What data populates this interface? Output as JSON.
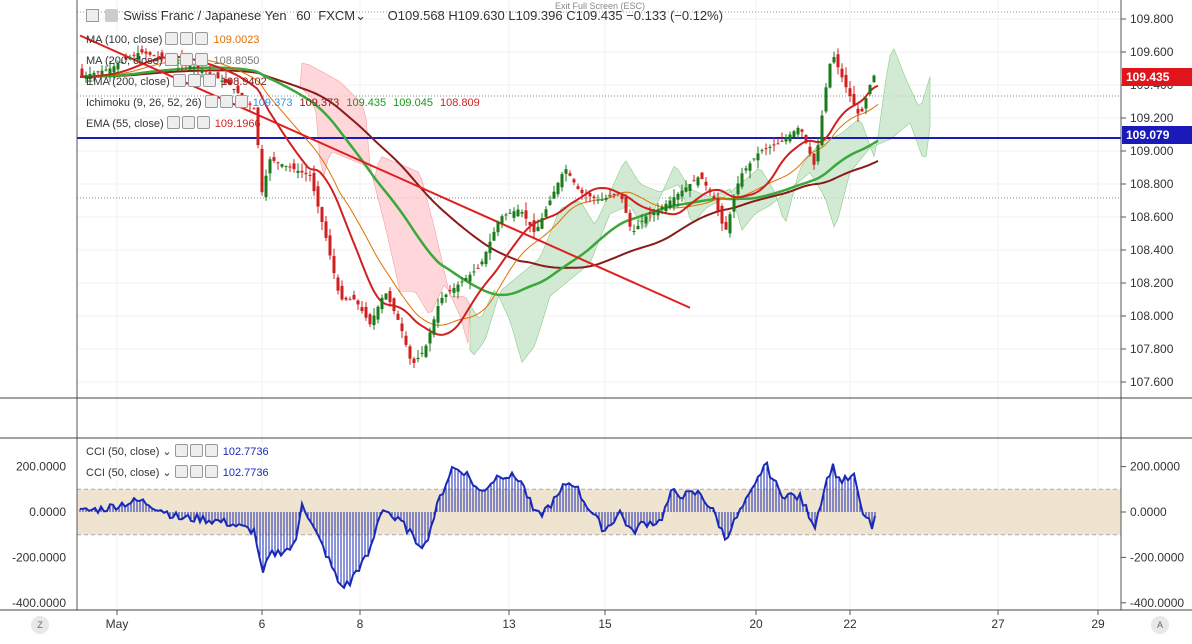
{
  "exit_fullscreen": "Exit Full Screen (ESC)",
  "header": {
    "symbol": "Swiss Franc / Japanese Yen",
    "interval": "60",
    "exchange": "FXCM",
    "ohlc": "O109.568  H109.630  L109.396  C109.435  −0.133 (−0.12%)",
    "caret": "⌄"
  },
  "indicators": [
    {
      "label": "MA (100, close)",
      "value": "109.0023",
      "color": "#e07000"
    },
    {
      "label": "MA (200, close)",
      "value": "108.8050",
      "color": "#777777"
    },
    {
      "label": "EMA (200, close)",
      "value": "108.9402",
      "color": "#8b1a1a"
    },
    {
      "label": "Ichimoku (9, 26, 52, 26)",
      "values": [
        "109.373",
        "109.373",
        "109.435",
        "109.045",
        "108.809"
      ],
      "colors": [
        "#2196f3",
        "#8b1a1a",
        "#1a9a1a",
        "#1a9a1a",
        "#d02020"
      ]
    },
    {
      "label": "EMA (55, close)",
      "value": "109.1966",
      "color": "#d02020"
    }
  ],
  "price_axis": {
    "ticks": [
      "109.800",
      "109.600",
      "109.400",
      "109.200",
      "109.000",
      "108.800",
      "108.600",
      "108.400",
      "108.200",
      "108.000",
      "107.800",
      "107.600"
    ],
    "current_price": "109.435",
    "current_color": "#e0151b",
    "hline_price": "109.079",
    "hline_color": "#1a1ab8"
  },
  "time_axis": {
    "labels": [
      "May",
      "6",
      "8",
      "13",
      "15",
      "20",
      "22",
      "27",
      "29"
    ]
  },
  "cci_panel": {
    "legend1": "CCI (50, close)",
    "legend2": "CCI (50, close)",
    "value": "102.7736",
    "value_color": "#1a2ab8",
    "ticks": [
      "200.0000",
      "0.0000",
      "-200.0000",
      "-400.0000"
    ],
    "band": [
      -100,
      100
    ]
  },
  "corners": {
    "left": "Z",
    "right": "A"
  },
  "colors": {
    "up_candle": "#1b7a1b",
    "down_candle": "#d01f1f",
    "cloud_green": "#c8e6c9",
    "cloud_red": "#ffcdd2",
    "ema200": "#8b1a1a",
    "ema55": "#d02020",
    "ma100": "#e07000",
    "green_ma": "#3aa83a",
    "trendline": "#e02020",
    "cci_line": "#1a2ab8",
    "cci_band": "#efe4cf"
  }
}
